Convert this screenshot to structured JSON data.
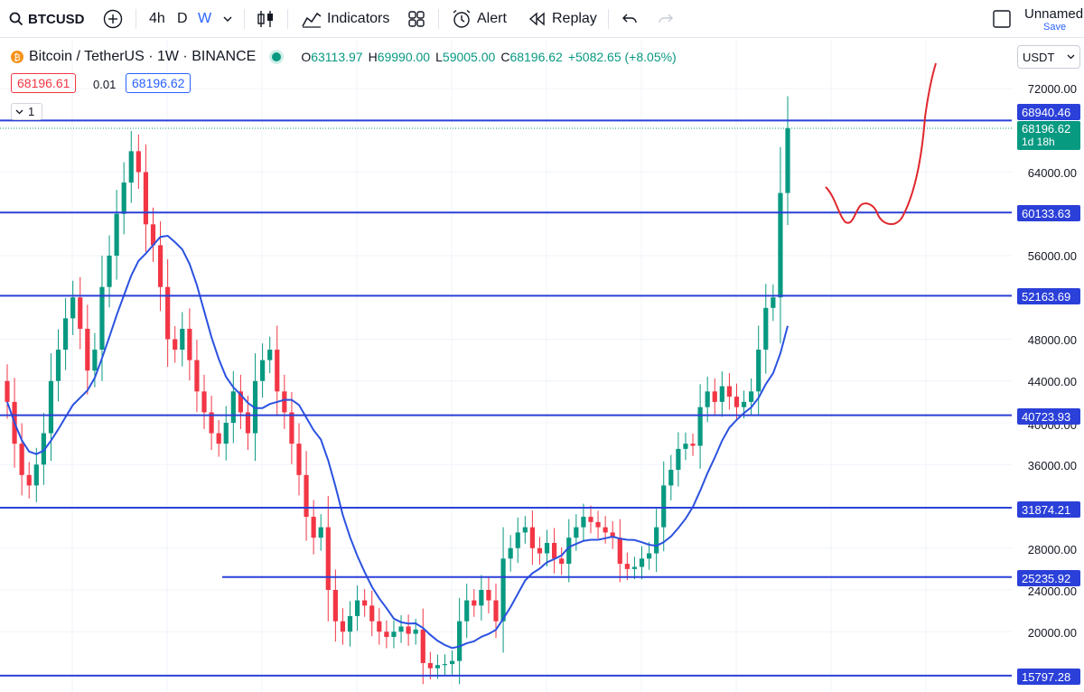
{
  "toolbar": {
    "symbol": "BTCUSD",
    "timeframes": [
      "4h",
      "D",
      "W"
    ],
    "active_timeframe": "W",
    "indicators_label": "Indicators",
    "alert_label": "Alert",
    "replay_label": "Replay",
    "layout_name": "Unnamed",
    "save_label": "Save"
  },
  "legend": {
    "title": "Bitcoin / TetherUS · 1W · BINANCE",
    "open_key": "O",
    "open": "63113.97",
    "high_key": "H",
    "high": "69990.00",
    "low_key": "L",
    "low": "59005.00",
    "close_key": "C",
    "close": "68196.62",
    "change": "+5082.65 (+8.05%)",
    "bid": "68196.61",
    "spread": "0.01",
    "ask": "68196.62",
    "collapse_count": "1"
  },
  "currency": "USDT",
  "price_axis": {
    "labels": [
      "72000.00",
      "64000.00",
      "56000.00",
      "48000.00",
      "44000.00",
      "40000.00",
      "36000.00",
      "28000.00",
      "24000.00",
      "20000.00"
    ]
  },
  "horizontal_levels": [
    "68940.46",
    "60133.63",
    "52163.69",
    "40723.93",
    "31874.21",
    "25235.92",
    "15797.28"
  ],
  "last_price": {
    "value": "68196.62",
    "countdown": "1d 18h"
  },
  "colors": {
    "up": "#089981",
    "down": "#f23645",
    "level_line": "#2b40d8",
    "ma_line": "#2b52e0",
    "drawing": "#e0282e"
  },
  "chart_data": {
    "type": "candlestick",
    "ylim": [
      15000,
      75000
    ],
    "close_series": [
      42000,
      38000,
      35000,
      34000,
      36000,
      39000,
      44000,
      47000,
      50000,
      52000,
      49000,
      45000,
      47000,
      53000,
      56000,
      60000,
      63000,
      66000,
      64000,
      59000,
      57000,
      53000,
      48000,
      47000,
      49000,
      46000,
      43000,
      41000,
      39000,
      38000,
      40000,
      43000,
      41000,
      39000,
      44000,
      46000,
      47000,
      43000,
      41000,
      38000,
      35000,
      31000,
      29000,
      30000,
      24000,
      21000,
      20000,
      21500,
      23000,
      22500,
      21000,
      20000,
      19500,
      20000,
      20500,
      19800,
      20200,
      17000,
      16500,
      16800,
      16900,
      17200,
      21000,
      23000,
      22500,
      24000,
      23000,
      21000,
      27000,
      28000,
      29500,
      30000,
      28000,
      27500,
      28500,
      27000,
      26500,
      29000,
      30000,
      31000,
      30500,
      30000,
      29500,
      29000,
      26500,
      26000,
      26200,
      27000,
      27500,
      30000,
      34000,
      35500,
      37500,
      38000,
      37800,
      41500,
      43000,
      42000,
      43500,
      42500,
      41500,
      42000,
      43000,
      47000,
      51000,
      52000,
      62000,
      68196.62
    ]
  }
}
